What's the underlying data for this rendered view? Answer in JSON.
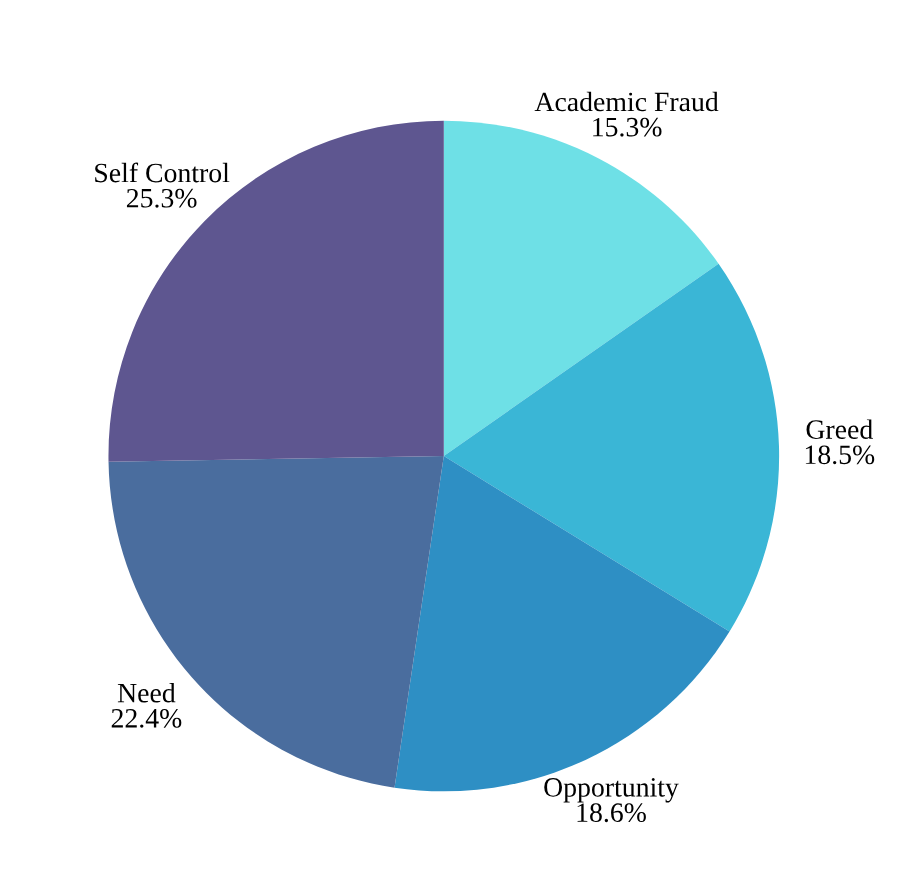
{
  "chart_data": {
    "type": "pie",
    "categories": [
      "Academic Fraud",
      "Greed",
      "Opportunity",
      "Need",
      "Self Control"
    ],
    "values": [
      15.3,
      18.5,
      18.6,
      22.4,
      25.3
    ],
    "value_labels": [
      "15.3%",
      "18.5%",
      "18.6%",
      "22.4%",
      "25.3%"
    ],
    "colors": [
      "#6ee0e6",
      "#3ab6d6",
      "#2e8fc4",
      "#4a6d9e",
      "#5e5690"
    ]
  }
}
